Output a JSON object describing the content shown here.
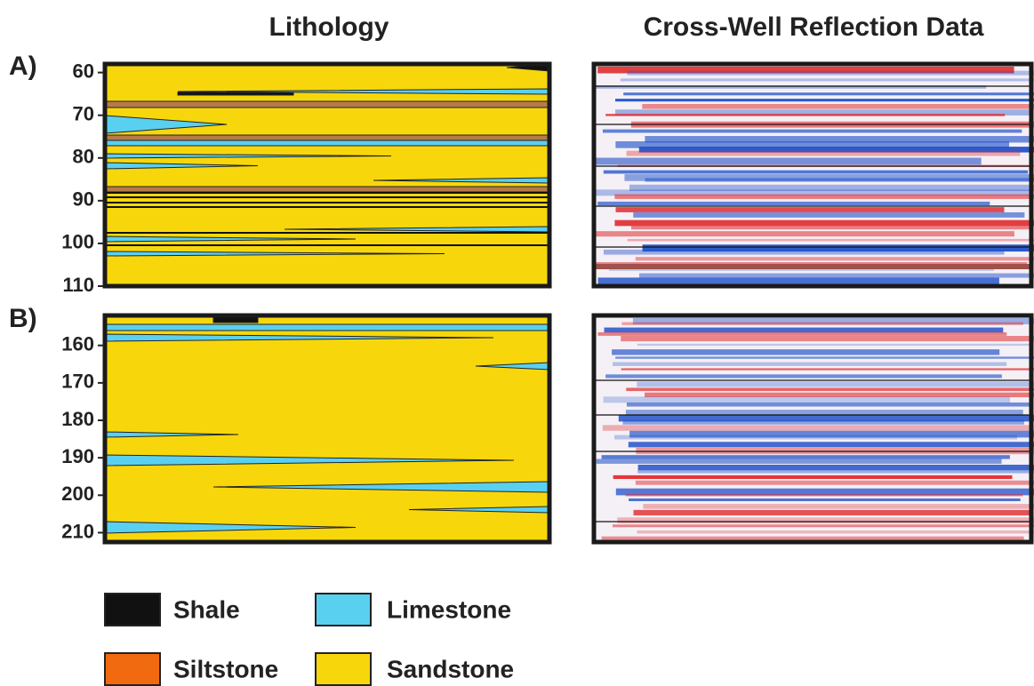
{
  "titles": {
    "lithology": "Lithology",
    "reflection": "Cross-Well Reflection Data"
  },
  "panels": [
    {
      "label": "A)",
      "depth_range": [
        58,
        110
      ],
      "ticks": [
        60,
        70,
        80,
        90,
        100,
        110
      ]
    },
    {
      "label": "B)",
      "depth_range": [
        152,
        212.5
      ],
      "ticks": [
        160,
        170,
        180,
        190,
        200,
        210
      ]
    }
  ],
  "legend": [
    {
      "name": "Shale",
      "color": "#111111"
    },
    {
      "name": "Limestone",
      "color": "#5ad0f0"
    },
    {
      "name": "Siltstone",
      "color": "#f26a10"
    },
    {
      "name": "Sandstone",
      "color": "#f7d70c"
    }
  ]
}
